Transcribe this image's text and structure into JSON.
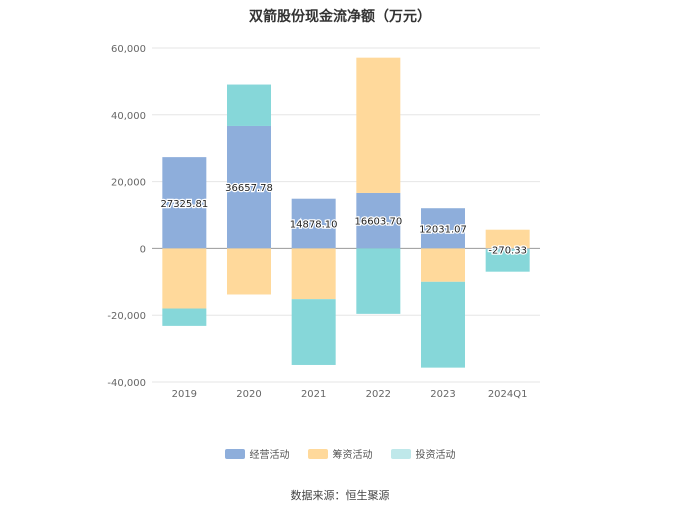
{
  "chart_data": {
    "type": "bar",
    "stacked": true,
    "title": "双箭股份现金流净额（万元）",
    "categories": [
      "2019",
      "2020",
      "2021",
      "2022",
      "2023",
      "2024Q1"
    ],
    "series": [
      {
        "name": "经营活动",
        "color": "#8eaedb",
        "values": [
          27325.81,
          36657.78,
          14878.1,
          16603.7,
          12031.07,
          -270.33
        ],
        "labels": [
          "27325.81",
          "36657.78",
          "14878.10",
          "16603.70",
          "12031.07",
          "-270.33"
        ]
      },
      {
        "name": "筹资活动",
        "color": "#ffd99b",
        "values": [
          -18000,
          -13800,
          -15200,
          40500,
          -10000,
          5600
        ]
      },
      {
        "name": "投资活动",
        "color": "#86d7d9",
        "values": [
          -5200,
          12400,
          -19700,
          -19600,
          -25700,
          -6700
        ]
      }
    ],
    "yticks": [
      60000,
      40000,
      20000,
      0,
      -20000,
      -40000
    ],
    "ytick_labels": [
      "60,000",
      "40,000",
      "20,000",
      "0",
      "-20,000",
      "-40,000"
    ],
    "ylim": [
      -40000,
      60000
    ],
    "grid": true,
    "legend_position": "bottom-center",
    "source": "数据来源：恒生聚源"
  }
}
